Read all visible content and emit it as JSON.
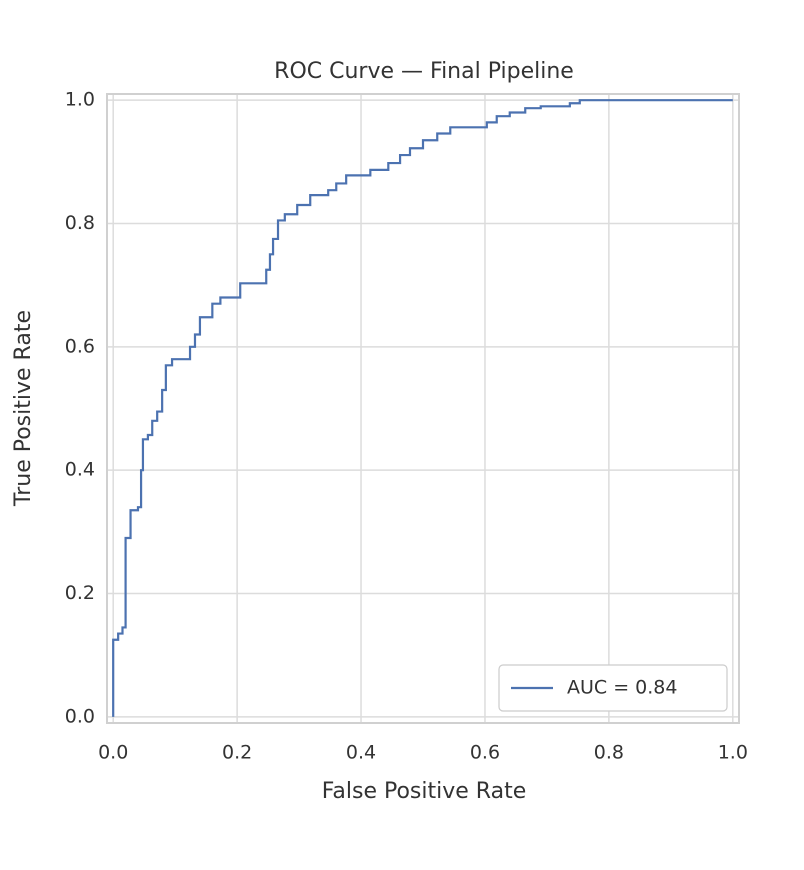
{
  "chart_data": {
    "type": "line",
    "title": "ROC Curve — Final Pipeline",
    "xlabel": "False Positive Rate",
    "ylabel": "True Positive Rate",
    "xlim": [
      -0.01,
      1.01
    ],
    "ylim": [
      -0.01,
      1.01
    ],
    "xticks": [
      {
        "value": 0,
        "label": "0.0"
      },
      0.2,
      0.4,
      0.6,
      0.8,
      {
        "value": 1,
        "label": "1.0"
      }
    ],
    "yticks": [
      {
        "value": 0,
        "label": "0.0"
      },
      0.2,
      0.4,
      0.6,
      0.8,
      {
        "value": 1,
        "label": "1.0"
      }
    ],
    "grid": true,
    "legend": "lower right",
    "series": [
      {
        "name": "AUC = 0.84",
        "color": "#4c72b0",
        "x": [
          0,
          0,
          0.008,
          0.008,
          0.015,
          0.015,
          0.02,
          0.02,
          0.028,
          0.028,
          0.04,
          0.04,
          0.045,
          0.045,
          0.048,
          0.048,
          0.056,
          0.056,
          0.063,
          0.063,
          0.071,
          0.071,
          0.079,
          0.079,
          0.085,
          0.085,
          0.095,
          0.095,
          0.124,
          0.124,
          0.132,
          0.132,
          0.14,
          0.14,
          0.16,
          0.16,
          0.173,
          0.173,
          0.205,
          0.205,
          0.247,
          0.247,
          0.253,
          0.253,
          0.258,
          0.258,
          0.266,
          0.266,
          0.277,
          0.277,
          0.297,
          0.297,
          0.318,
          0.318,
          0.347,
          0.347,
          0.36,
          0.36,
          0.376,
          0.376,
          0.415,
          0.415,
          0.444,
          0.444,
          0.463,
          0.463,
          0.479,
          0.479,
          0.5,
          0.5,
          0.523,
          0.523,
          0.544,
          0.544,
          0.603,
          0.603,
          0.619,
          0.619,
          0.64,
          0.64,
          0.665,
          0.665,
          0.69,
          0.69,
          0.737,
          0.737,
          0.753,
          0.753,
          1
        ],
        "values": [
          0,
          0.125,
          0.125,
          0.135,
          0.135,
          0.145,
          0.145,
          0.29,
          0.29,
          0.335,
          0.335,
          0.34,
          0.34,
          0.4,
          0.4,
          0.45,
          0.45,
          0.457,
          0.457,
          0.48,
          0.48,
          0.495,
          0.495,
          0.53,
          0.53,
          0.57,
          0.57,
          0.58,
          0.58,
          0.6,
          0.6,
          0.62,
          0.62,
          0.648,
          0.648,
          0.67,
          0.67,
          0.68,
          0.68,
          0.703,
          0.703,
          0.725,
          0.725,
          0.75,
          0.75,
          0.775,
          0.775,
          0.805,
          0.805,
          0.815,
          0.815,
          0.83,
          0.83,
          0.846,
          0.846,
          0.854,
          0.854,
          0.865,
          0.865,
          0.878,
          0.878,
          0.887,
          0.887,
          0.898,
          0.898,
          0.911,
          0.911,
          0.922,
          0.922,
          0.935,
          0.935,
          0.946,
          0.946,
          0.956,
          0.956,
          0.964,
          0.964,
          0.974,
          0.974,
          0.98,
          0.98,
          0.987,
          0.987,
          0.99,
          0.99,
          0.995,
          0.995,
          1,
          1
        ]
      }
    ]
  }
}
